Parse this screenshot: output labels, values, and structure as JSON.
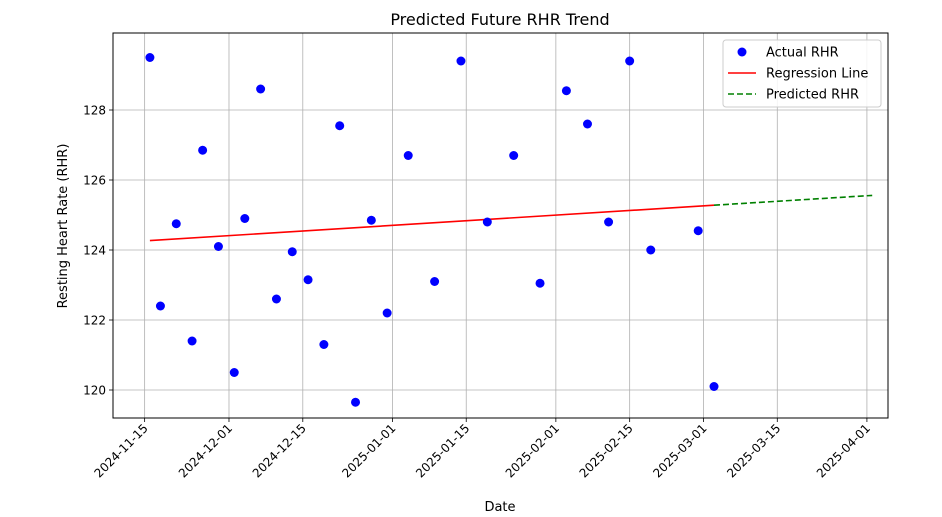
{
  "chart_data": {
    "type": "scatter",
    "title": "Predicted Future RHR Trend",
    "xlabel": "Date",
    "ylabel": "Resting Heart Rate (RHR)",
    "x_axis_type": "date",
    "xlim": [
      "2024-11-09",
      "2025-04-05"
    ],
    "ylim": [
      119.2,
      130.2
    ],
    "x_ticks": [
      "2024-11-15",
      "2024-12-01",
      "2024-12-15",
      "2025-01-01",
      "2025-01-15",
      "2025-02-01",
      "2025-02-15",
      "2025-03-01",
      "2025-03-15",
      "2025-04-01"
    ],
    "y_ticks": [
      120,
      122,
      124,
      126,
      128
    ],
    "grid": true,
    "legend_position": "top-right",
    "series": [
      {
        "name": "Actual RHR",
        "kind": "scatter",
        "color": "#0000ff",
        "points": [
          {
            "x": "2024-11-16",
            "y": 129.5
          },
          {
            "x": "2024-11-18",
            "y": 122.4
          },
          {
            "x": "2024-11-21",
            "y": 124.75
          },
          {
            "x": "2024-11-24",
            "y": 121.4
          },
          {
            "x": "2024-11-26",
            "y": 126.85
          },
          {
            "x": "2024-11-29",
            "y": 124.1
          },
          {
            "x": "2024-12-02",
            "y": 120.5
          },
          {
            "x": "2024-12-04",
            "y": 124.9
          },
          {
            "x": "2024-12-07",
            "y": 128.6
          },
          {
            "x": "2024-12-10",
            "y": 122.6
          },
          {
            "x": "2024-12-13",
            "y": 123.95
          },
          {
            "x": "2024-12-16",
            "y": 123.15
          },
          {
            "x": "2024-12-19",
            "y": 121.3
          },
          {
            "x": "2024-12-22",
            "y": 127.55
          },
          {
            "x": "2024-12-25",
            "y": 119.65
          },
          {
            "x": "2024-12-28",
            "y": 124.85
          },
          {
            "x": "2024-12-31",
            "y": 122.2
          },
          {
            "x": "2025-01-04",
            "y": 126.7
          },
          {
            "x": "2025-01-09",
            "y": 123.1
          },
          {
            "x": "2025-01-14",
            "y": 129.4
          },
          {
            "x": "2025-01-19",
            "y": 124.8
          },
          {
            "x": "2025-01-24",
            "y": 126.7
          },
          {
            "x": "2025-01-29",
            "y": 123.05
          },
          {
            "x": "2025-02-03",
            "y": 128.55
          },
          {
            "x": "2025-02-07",
            "y": 127.6
          },
          {
            "x": "2025-02-11",
            "y": 124.8
          },
          {
            "x": "2025-02-15",
            "y": 129.4
          },
          {
            "x": "2025-02-19",
            "y": 124.0
          },
          {
            "x": "2025-02-28",
            "y": 124.55
          },
          {
            "x": "2025-03-03",
            "y": 120.1
          }
        ]
      },
      {
        "name": "Regression Line",
        "kind": "line",
        "color": "#ff0000",
        "style": "solid",
        "points": [
          {
            "x": "2024-11-16",
            "y": 124.27
          },
          {
            "x": "2025-03-03",
            "y": 125.28
          }
        ]
      },
      {
        "name": "Predicted RHR",
        "kind": "line",
        "color": "#008000",
        "style": "dashed",
        "points": [
          {
            "x": "2025-03-03",
            "y": 125.28
          },
          {
            "x": "2025-04-02",
            "y": 125.56
          }
        ]
      }
    ]
  }
}
